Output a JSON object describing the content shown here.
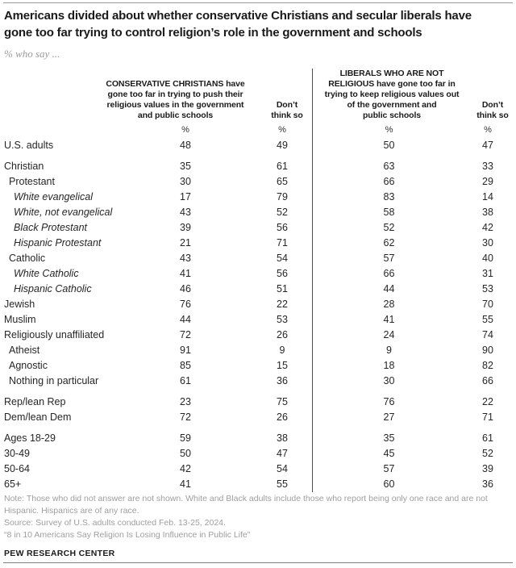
{
  "title_lines": [
    "Americans divided about whether conservative Christians and secular liberals have",
    "gone too far trying to control religion’s role in the government and schools"
  ],
  "subtitle": "% who say ...",
  "header_lines": {
    "c1": [
      "CONSERVATIVE CHRISTIANS have",
      "gone too far in trying to push their",
      "religious values in the government",
      "and public schools"
    ],
    "c2": [
      "Don’t",
      "think so"
    ],
    "c3": [
      "LIBERALS WHO ARE NOT",
      "RELIGIOUS have gone too far in",
      "trying to keep religious values out",
      "of the government and",
      "public schools"
    ],
    "c4": [
      "Don’t",
      "think so"
    ]
  },
  "chart_data": {
    "type": "table",
    "title": "Americans divided about whether conservative Christians and secular liberals have gone too far trying to control religion’s role in the government and schools",
    "subtitle": "% who say ...",
    "columns": [
      "CONSERVATIVE CHRISTIANS have gone too far in trying to push their religious values in the government and public schools",
      "Don’t think so",
      "LIBERALS WHO ARE NOT RELIGIOUS have gone too far in trying to keep religious values out of the government and public schools",
      "Don’t think so"
    ],
    "unit_row": [
      "%",
      "%",
      "%",
      "%"
    ],
    "rows": [
      {
        "label": "U.S. adults",
        "indent": 0,
        "italic": false,
        "group_start": false,
        "values": [
          48,
          49,
          50,
          47
        ]
      },
      {
        "label": "Christian",
        "indent": 0,
        "italic": false,
        "group_start": true,
        "values": [
          35,
          61,
          63,
          33
        ]
      },
      {
        "label": "Protestant",
        "indent": 1,
        "italic": false,
        "group_start": false,
        "values": [
          30,
          65,
          66,
          29
        ]
      },
      {
        "label": "White evangelical",
        "indent": 2,
        "italic": true,
        "group_start": false,
        "values": [
          17,
          79,
          83,
          14
        ]
      },
      {
        "label": "White, not evangelical",
        "indent": 2,
        "italic": true,
        "group_start": false,
        "values": [
          43,
          52,
          58,
          38
        ]
      },
      {
        "label": "Black Protestant",
        "indent": 2,
        "italic": true,
        "group_start": false,
        "values": [
          39,
          56,
          52,
          42
        ]
      },
      {
        "label": "Hispanic Protestant",
        "indent": 2,
        "italic": true,
        "group_start": false,
        "values": [
          21,
          71,
          62,
          30
        ]
      },
      {
        "label": "Catholic",
        "indent": 1,
        "italic": false,
        "group_start": false,
        "values": [
          43,
          54,
          57,
          40
        ]
      },
      {
        "label": "White Catholic",
        "indent": 2,
        "italic": true,
        "group_start": false,
        "values": [
          41,
          56,
          66,
          31
        ]
      },
      {
        "label": "Hispanic Catholic",
        "indent": 2,
        "italic": true,
        "group_start": false,
        "values": [
          46,
          51,
          44,
          53
        ]
      },
      {
        "label": "Jewish",
        "indent": 0,
        "italic": false,
        "group_start": false,
        "values": [
          76,
          22,
          28,
          70
        ]
      },
      {
        "label": "Muslim",
        "indent": 0,
        "italic": false,
        "group_start": false,
        "values": [
          44,
          53,
          41,
          55
        ]
      },
      {
        "label": "Religiously unaffiliated",
        "indent": 0,
        "italic": false,
        "group_start": false,
        "values": [
          72,
          26,
          24,
          74
        ]
      },
      {
        "label": "Atheist",
        "indent": 1,
        "italic": false,
        "group_start": false,
        "values": [
          91,
          9,
          9,
          90
        ]
      },
      {
        "label": "Agnostic",
        "indent": 1,
        "italic": false,
        "group_start": false,
        "values": [
          85,
          15,
          18,
          82
        ]
      },
      {
        "label": "Nothing in particular",
        "indent": 1,
        "italic": false,
        "group_start": false,
        "values": [
          61,
          36,
          30,
          66
        ]
      },
      {
        "label": "Rep/lean Rep",
        "indent": 0,
        "italic": false,
        "group_start": true,
        "values": [
          23,
          75,
          76,
          22
        ]
      },
      {
        "label": "Dem/lean Dem",
        "indent": 0,
        "italic": false,
        "group_start": false,
        "values": [
          72,
          26,
          27,
          71
        ]
      },
      {
        "label": "Ages 18-29",
        "indent": 0,
        "italic": false,
        "group_start": true,
        "values": [
          59,
          38,
          35,
          61
        ]
      },
      {
        "label": "30-49",
        "indent": 0,
        "italic": false,
        "group_start": false,
        "values": [
          50,
          47,
          45,
          52
        ]
      },
      {
        "label": "50-64",
        "indent": 0,
        "italic": false,
        "group_start": false,
        "values": [
          42,
          54,
          57,
          39
        ]
      },
      {
        "label": "65+",
        "indent": 0,
        "italic": false,
        "group_start": false,
        "values": [
          41,
          55,
          60,
          36
        ]
      }
    ]
  },
  "footer": {
    "note": "Note: Those who did not answer are not shown. White and Black adults include those who report being only one race and are not Hispanic. Hispanics are of any race.",
    "source": "Source: Survey of U.S. adults conducted Feb. 13-25, 2024.",
    "report": "“8 in 10 Americans Say Religion Is Losing Influence in Public Life”",
    "brand": "PEW RESEARCH CENTER"
  },
  "colors": {
    "title_text": "#1a1a1a",
    "body_text": "#262626",
    "muted_text": "#9a9a9a",
    "rule_gray": "#808080",
    "divider_dark": "#4d4d4d"
  }
}
